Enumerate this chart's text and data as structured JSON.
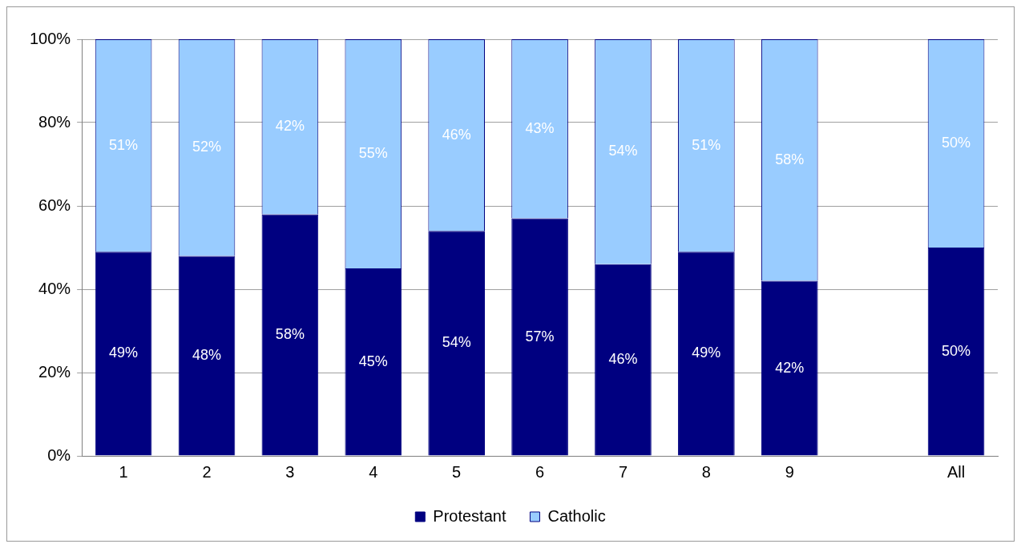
{
  "chart_data": {
    "type": "bar",
    "stacked": true,
    "categories": [
      "1",
      "2",
      "3",
      "4",
      "5",
      "6",
      "7",
      "8",
      "9",
      null,
      "All"
    ],
    "series": [
      {
        "name": "Protestant",
        "color": "#000080",
        "values": [
          49,
          48,
          58,
          45,
          54,
          57,
          46,
          49,
          42,
          null,
          50
        ],
        "value_labels": [
          "49%",
          "48%",
          "58%",
          "45%",
          "54%",
          "57%",
          "46%",
          "49%",
          "42%",
          null,
          "50%"
        ]
      },
      {
        "name": "Catholic",
        "color": "#99ccff",
        "values": [
          51,
          52,
          42,
          55,
          46,
          43,
          54,
          51,
          58,
          null,
          50
        ],
        "value_labels": [
          "51%",
          "52%",
          "42%",
          "55%",
          "46%",
          "43%",
          "54%",
          "51%",
          "58%",
          null,
          "50%"
        ]
      }
    ],
    "ylim": [
      0,
      100
    ],
    "yticks": [
      {
        "value": 0,
        "label": "0%"
      },
      {
        "value": 20,
        "label": "20%"
      },
      {
        "value": 40,
        "label": "40%"
      },
      {
        "value": 60,
        "label": "60%"
      },
      {
        "value": 80,
        "label": "80%"
      },
      {
        "value": 100,
        "label": "100%"
      }
    ],
    "grid": "y",
    "legend": "bottom"
  }
}
